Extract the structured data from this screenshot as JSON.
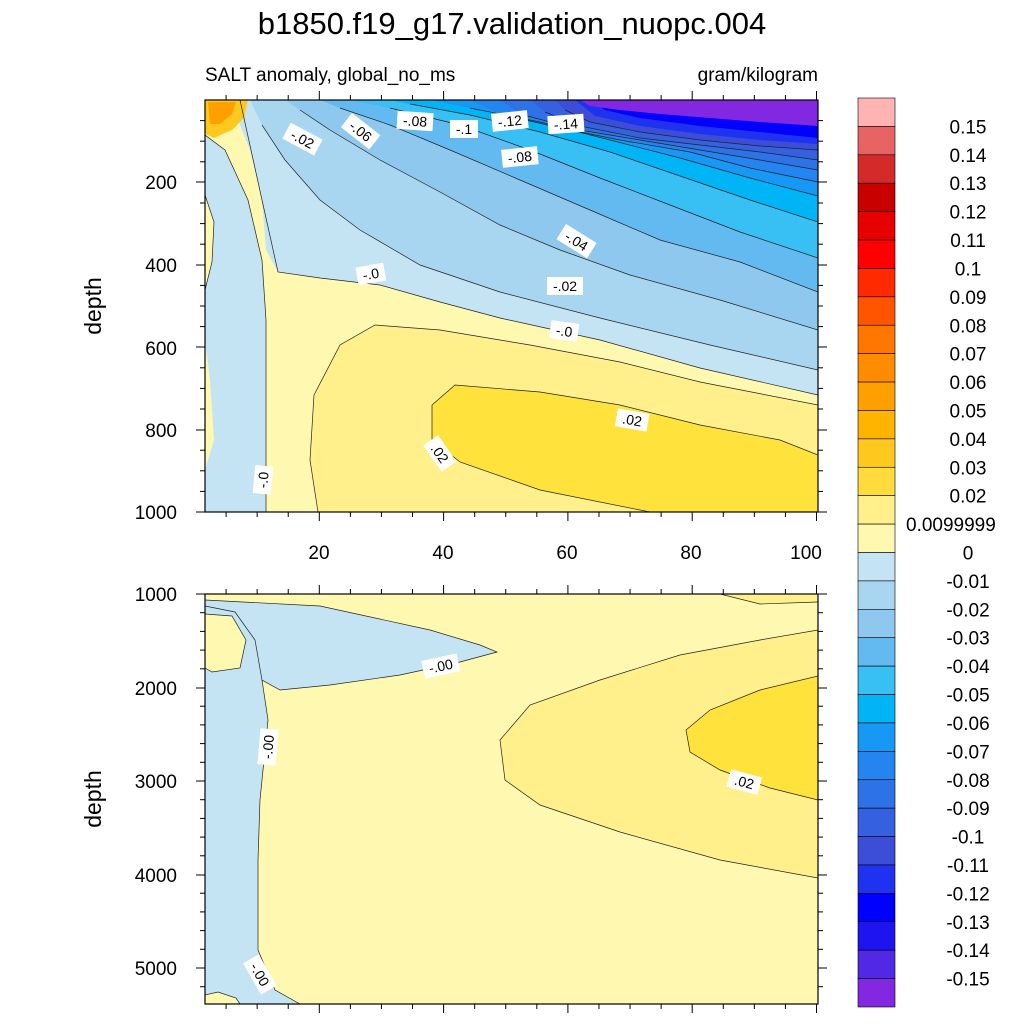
{
  "title": "b1850.f19_g17.validation_nuopc.004",
  "chart_data": [
    {
      "type": "contour",
      "panel": "top",
      "subtitle_left": "SALT anomaly, global_no_ms",
      "subtitle_right": "gram/kilogram",
      "ylabel": "depth",
      "xlim": [
        0,
        100
      ],
      "ylim": [
        0,
        1000
      ],
      "y_reversed": true,
      "xticks": [
        "20",
        "40",
        "60",
        "80",
        "100"
      ],
      "yticks": [
        "200",
        "400",
        "600",
        "800",
        "1000"
      ],
      "contour_labels": [
        "-.02",
        "-.06",
        "-.08",
        "-.1",
        "-.12",
        "-.14",
        "-.08",
        "-.04",
        "-.02",
        "-.0",
        "-.0",
        ".02",
        ".02",
        "-.0"
      ]
    },
    {
      "type": "contour",
      "panel": "bottom",
      "ylabel": "depth",
      "xlim": [
        0,
        100
      ],
      "ylim": [
        1000,
        5400
      ],
      "y_reversed": true,
      "yticks": [
        "1000",
        "2000",
        "3000",
        "4000",
        "5000"
      ],
      "contour_labels": [
        "-.00",
        "-.00",
        ".02",
        "-.00"
      ]
    }
  ],
  "colorbar": {
    "labels": [
      "0.15",
      "0.14",
      "0.13",
      "0.12",
      "0.11",
      "0.1",
      "0.09",
      "0.08",
      "0.07",
      "0.06",
      "0.05",
      "0.04",
      "0.03",
      "0.02",
      "0.0099999",
      "0",
      "-0.01",
      "-0.02",
      "-0.03",
      "-0.04",
      "-0.05",
      "-0.06",
      "-0.07",
      "-0.08",
      "-0.09",
      "-0.1",
      "-0.11",
      "-0.12",
      "-0.13",
      "-0.14",
      "-0.15"
    ],
    "colors": [
      "#ffb3b3",
      "#e86464",
      "#d42a2a",
      "#c80000",
      "#e60000",
      "#ff0000",
      "#ff2a00",
      "#ff5500",
      "#ff7700",
      "#ff8c00",
      "#ffa000",
      "#ffb400",
      "#ffc81e",
      "#ffdc3c",
      "#fff08c",
      "#fff8b0",
      "#c4e4f4",
      "#a8d6f0",
      "#8ec8ee",
      "#62baf0",
      "#38c0f5",
      "#00b4f5",
      "#1898f5",
      "#2484f0",
      "#2e72e8",
      "#3560e0",
      "#3c4ed8",
      "#1e32f0",
      "#0000ff",
      "#1e14f0",
      "#5028e6",
      "#8228e0"
    ]
  }
}
